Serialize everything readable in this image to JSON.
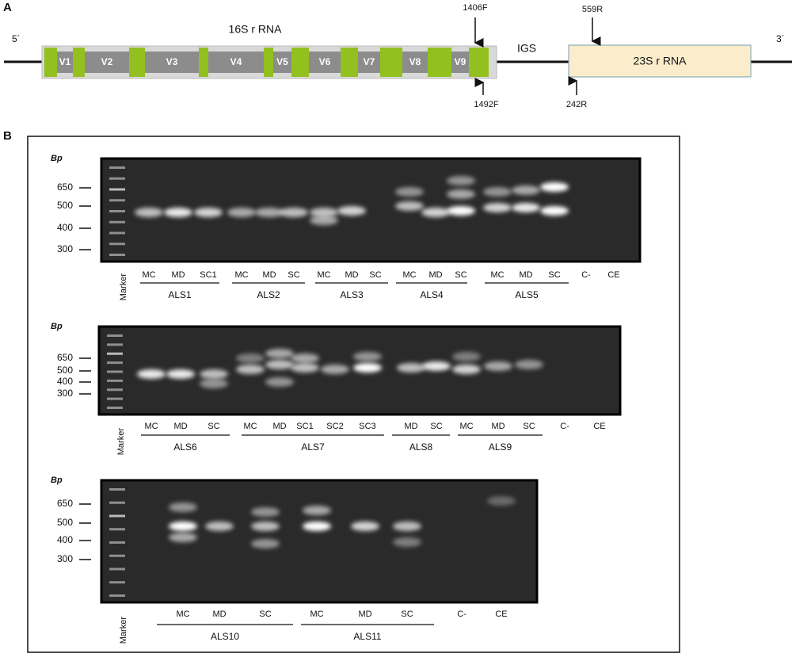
{
  "panel_a": {
    "label": "A",
    "five_prime": "5´",
    "three_prime": "3´",
    "title_16s": "16S r RNA",
    "regions": [
      "V1",
      "V2",
      "V3",
      "V4",
      "V5",
      "V6",
      "V7",
      "V8",
      "V9"
    ],
    "primer_1406f": "1406F",
    "primer_1492f": "1492F",
    "igs": "IGS",
    "title_23s": "23S r RNA",
    "primer_559r": "559R",
    "primer_242r": "242R"
  },
  "panel_b": {
    "label": "B",
    "gels": [
      {
        "bp": "Bp",
        "sizes": [
          "650",
          "500",
          "400",
          "300"
        ],
        "marker": "Marker",
        "lanes": [
          "MC",
          "MD",
          "SC1",
          "MC",
          "MD",
          "SC",
          "MC",
          "MD",
          "SC",
          "MC",
          "MD",
          "SC",
          "MC",
          "MD",
          "SC",
          "C-",
          "CE"
        ],
        "groups": [
          "ALS1",
          "ALS2",
          "ALS3",
          "ALS4",
          "ALS5"
        ]
      },
      {
        "bp": "Bp",
        "sizes": [
          "650",
          "500",
          "400",
          "300"
        ],
        "marker": "Marker",
        "lanes": [
          "MC",
          "MD",
          "SC",
          "MC",
          "MD",
          "SC1",
          "SC2",
          "SC3",
          "MD",
          "SC",
          "MC",
          "MD",
          "SC",
          "C-",
          "CE"
        ],
        "groups": [
          "ALS6",
          "ALS7",
          "ALS8",
          "ALS9"
        ]
      },
      {
        "bp": "Bp",
        "sizes": [
          "650",
          "500",
          "400",
          "300"
        ],
        "marker": "Marker",
        "lanes": [
          "MC",
          "MD",
          "SC",
          "MC",
          "MD",
          "SC",
          "C-",
          "CE"
        ],
        "groups": [
          "ALS10",
          "ALS11"
        ]
      }
    ]
  }
}
